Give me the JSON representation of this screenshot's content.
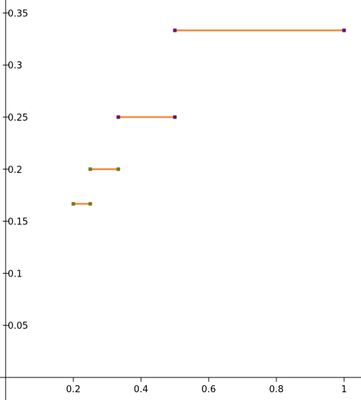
{
  "chart_data": {
    "type": "line",
    "title": "",
    "xlabel": "",
    "ylabel": "",
    "xlim": [
      0,
      1.05
    ],
    "ylim": [
      0,
      0.36
    ],
    "grid": false,
    "x_ticks": [
      {
        "value": 0.2,
        "label": "0.2"
      },
      {
        "value": 0.4,
        "label": "0.4"
      },
      {
        "value": 0.6,
        "label": "0.6"
      },
      {
        "value": 0.8,
        "label": "0.8"
      },
      {
        "value": 1.0,
        "label": "1"
      }
    ],
    "y_ticks": [
      {
        "value": 0.05,
        "label": "0.05"
      },
      {
        "value": 0.1,
        "label": "0.1"
      },
      {
        "value": 0.15,
        "label": "0.15"
      },
      {
        "value": 0.2,
        "label": "0.2"
      },
      {
        "value": 0.25,
        "label": "0.25"
      },
      {
        "value": 0.3,
        "label": "0.3"
      },
      {
        "value": 0.35,
        "label": "0.35"
      }
    ],
    "segments": [
      {
        "x0": 0.2,
        "x1": 0.25,
        "y": 0.1667,
        "endpoint_color": "#6f7a1a"
      },
      {
        "x0": 0.25,
        "x1": 0.333,
        "y": 0.2,
        "endpoint_color": "#6f7a1a"
      },
      {
        "x0": 0.333,
        "x1": 0.5,
        "y": 0.25,
        "endpoint_color": "#6a0f70"
      },
      {
        "x0": 0.5,
        "x1": 1.0,
        "y": 0.3333,
        "endpoint_color": "#6a0f70"
      }
    ],
    "colors": {
      "segment": "#f28a3c",
      "axis": "#000000"
    }
  }
}
